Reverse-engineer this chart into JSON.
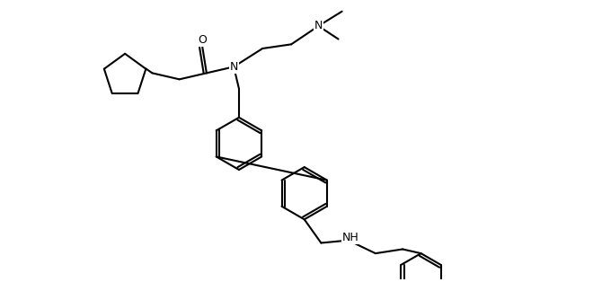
{
  "bg_color": "#ffffff",
  "line_color": "#000000",
  "line_width": 1.5,
  "fig_width": 6.6,
  "fig_height": 3.14,
  "dpi": 100,
  "xlim": [
    0,
    11
  ],
  "ylim": [
    0,
    5.3
  ]
}
